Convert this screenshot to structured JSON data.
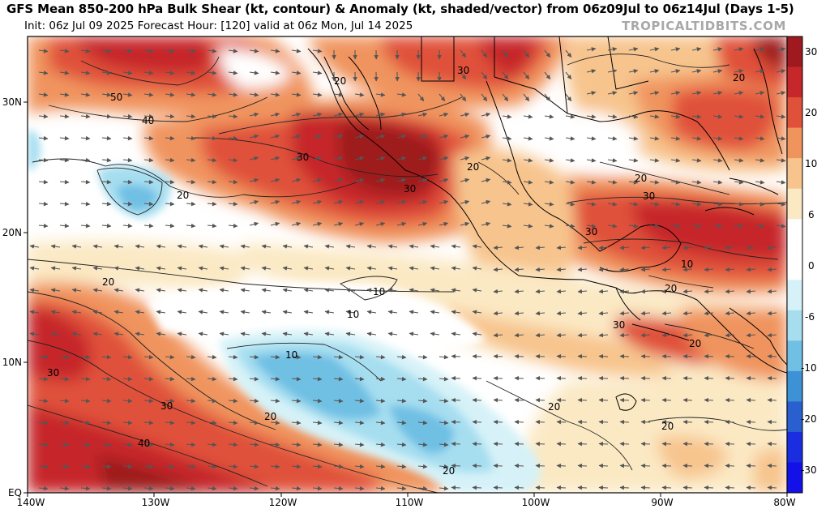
{
  "header": {
    "title": "GFS Mean 850-200 hPa Bulk Shear (kt, contour) & Anomaly (kt, shaded/vector) from 06z09Jul to 06z14Jul (Days 1-5)",
    "subtitle": "Init: 06z Jul 09 2025   Forecast Hour: [120]   valid at 06z Mon, Jul 14 2025",
    "brand": "TROPICALTIDBITS.COM"
  },
  "map": {
    "lon_labels": [
      "140W",
      "130W",
      "120W",
      "110W",
      "100W",
      "90W",
      "80W"
    ],
    "lat_labels": [
      "30N",
      "20N",
      "10N",
      "EQ"
    ],
    "contour_labels": [
      "50",
      "40",
      "30",
      "20",
      "20",
      "30",
      "30",
      "30",
      "20",
      "30",
      "20",
      "20",
      "20",
      "30",
      "40",
      "20",
      "10",
      "10",
      "10",
      "20",
      "20",
      "30",
      "20",
      "30",
      "20",
      "10",
      "20",
      "40",
      "30",
      "20",
      "20"
    ]
  },
  "colorbar": {
    "labels": [
      "30",
      "20",
      "10",
      "6",
      "0",
      "-6",
      "-10",
      "-20",
      "-30"
    ],
    "colors": [
      "#9e1a1f",
      "#c6272a",
      "#e0513a",
      "#f0945e",
      "#f7c48d",
      "#fbe9c4",
      "#ffffff",
      "#ffffff",
      "#d6f2f8",
      "#a6def0",
      "#6fc0e4",
      "#3d92d6",
      "#2a5fd0",
      "#1a2de0",
      "#1410e8"
    ]
  }
}
